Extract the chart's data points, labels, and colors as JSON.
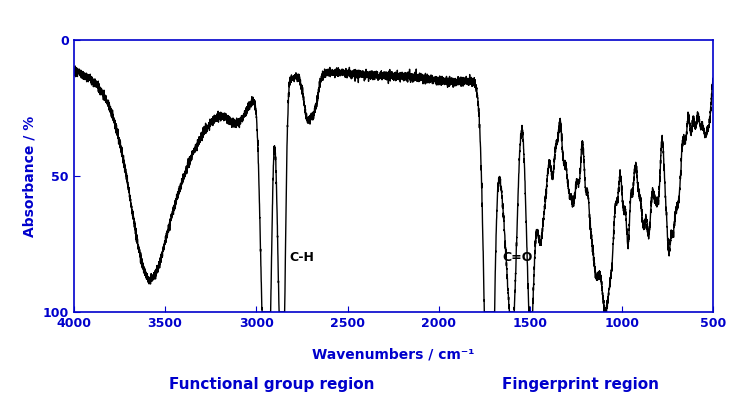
{
  "ylabel": "Absorbance / %",
  "xlabel": "Wavenumbers / cm⁻¹",
  "xlim": [
    4000,
    500
  ],
  "ylim": [
    100,
    0
  ],
  "yticks": [
    0,
    50,
    100
  ],
  "xticks": [
    4000,
    3500,
    3000,
    2500,
    2000,
    1500,
    1000,
    500
  ],
  "functional_group_label": "Functional group region",
  "fingerprint_label": "Fingerprint region",
  "ch_label": "C-H",
  "co_label": "C=O",
  "label_color": "#0000CC",
  "line_color": "#000000",
  "background_color": "#FFFFFF",
  "text_color": "#000000"
}
